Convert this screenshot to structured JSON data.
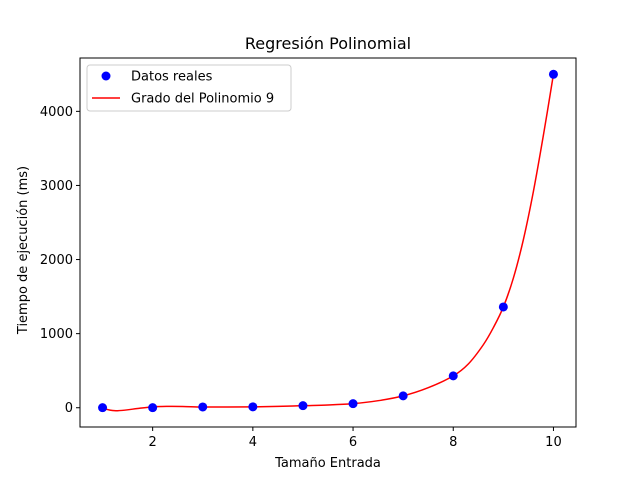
{
  "chart_data": {
    "type": "scatter",
    "title": "Regresión Polinomial",
    "xlabel": "Tamaño Entrada",
    "ylabel": "Tiempo de ejecución (ms)",
    "xlim": [
      0.55,
      10.45
    ],
    "ylim": [
      -260,
      4720
    ],
    "x_ticks": [
      2,
      4,
      6,
      8,
      10
    ],
    "y_ticks": [
      0,
      1000,
      2000,
      3000,
      4000
    ],
    "grid": false,
    "legend_position": "top-left",
    "series": [
      {
        "name": "Datos reales",
        "kind": "scatter",
        "color": "#0000ff",
        "x": [
          1,
          2,
          3,
          4,
          5,
          6,
          7,
          8,
          9,
          10
        ],
        "y": [
          1,
          1,
          10,
          12,
          28,
          55,
          160,
          430,
          1360,
          4500
        ]
      },
      {
        "name": "Grado del Polinomio 9",
        "kind": "line",
        "color": "#ff0000",
        "x": [
          1.0,
          1.1,
          1.2,
          1.3,
          1.5,
          1.7,
          2.0,
          2.3,
          2.6,
          3.0,
          3.5,
          4.0,
          4.5,
          5.0,
          5.5,
          6.0,
          6.5,
          7.0,
          7.5,
          8.0,
          8.3,
          8.6,
          8.8,
          9.0,
          9.2,
          9.4,
          9.6,
          9.8,
          10.0
        ],
        "y": [
          1,
          -25,
          -38,
          -40,
          -28,
          -10,
          12,
          18,
          17,
          10,
          10,
          12,
          18,
          28,
          37,
          55,
          95,
          160,
          270,
          430,
          590,
          850,
          1080,
          1360,
          1750,
          2270,
          2920,
          3680,
          4500
        ]
      }
    ]
  }
}
